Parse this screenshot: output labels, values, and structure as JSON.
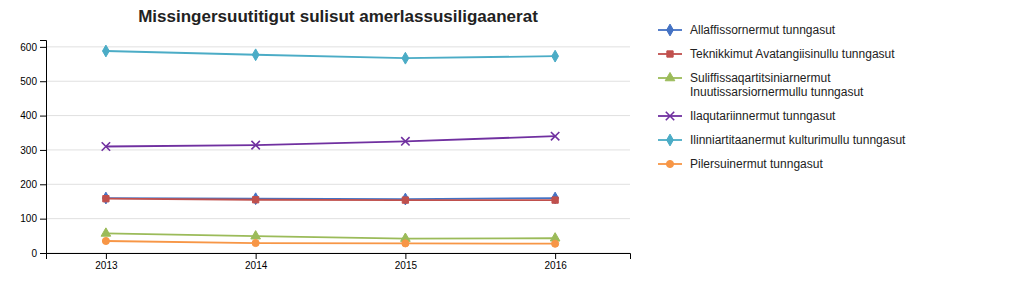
{
  "chart_data": {
    "type": "line",
    "title": "Missingersuutitigut sulisut amerlassusiligaanerat",
    "x": [
      2013,
      2014,
      2015,
      2016
    ],
    "xlim": [
      2012.6,
      2016.5
    ],
    "xticks": [
      2013,
      2014,
      2015,
      2016
    ],
    "ylim": [
      0,
      620
    ],
    "yticks": [
      0,
      100,
      200,
      300,
      400,
      500,
      600
    ],
    "grid": true,
    "legend": "right",
    "series": [
      {
        "name": "Allaffissornermut tunngasut",
        "color": "#4472c4",
        "marker": "diamond",
        "values": [
          160,
          158,
          157,
          160
        ]
      },
      {
        "name": "Teknikkimut Avatangiisinullu tunngasut",
        "color": "#c0504d",
        "marker": "square",
        "values": [
          158,
          155,
          154,
          154
        ]
      },
      {
        "name": "Suliffissaqartitsiniarnermut\nInuutissarsiornermullu tunngasut",
        "color": "#9bbb59",
        "marker": "triangle",
        "values": [
          57,
          49,
          42,
          43
        ]
      },
      {
        "name": "Ilaqutariinnermut tunngasut",
        "color": "#7030a0",
        "marker": "x",
        "values": [
          310,
          314,
          325,
          340
        ]
      },
      {
        "name": "Ilinniartitaanermut kulturimullu tunngasut",
        "color": "#4bacc6",
        "marker": "diamond",
        "values": [
          588,
          577,
          567,
          573
        ]
      },
      {
        "name": "Pilersuinermut tunngasut",
        "color": "#f79646",
        "marker": "circle",
        "values": [
          35,
          29,
          28,
          27
        ]
      }
    ]
  }
}
